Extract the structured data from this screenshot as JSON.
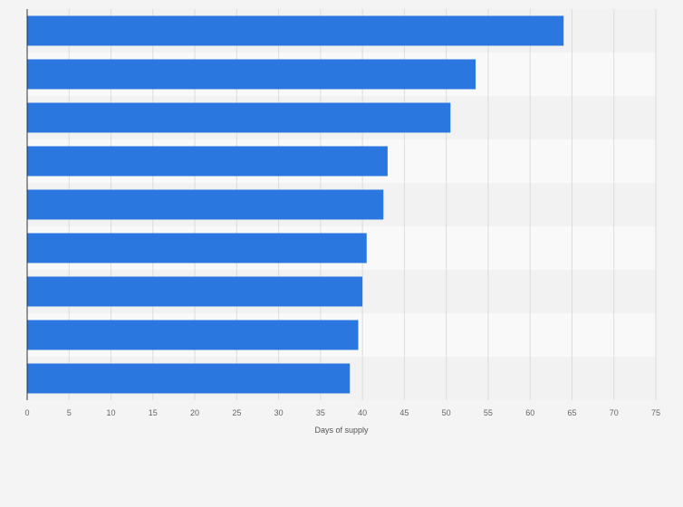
{
  "chart_data": {
    "type": "bar",
    "orientation": "horizontal",
    "title": "",
    "xlabel": "Days of supply",
    "ylabel": "",
    "xlim": [
      0,
      75
    ],
    "x_ticks": [
      0,
      5,
      10,
      15,
      20,
      25,
      30,
      35,
      40,
      45,
      50,
      55,
      60,
      65,
      70,
      75
    ],
    "categories": [
      "",
      "",
      "",
      "",
      "",
      "",
      "",
      "",
      ""
    ],
    "values": [
      64,
      53.5,
      50.5,
      43,
      42.5,
      40.5,
      40,
      39.5,
      38.5
    ],
    "grid": true,
    "legend": "none",
    "colors": {
      "bar": "#2a77e0",
      "band_dark": "#f2f2f2",
      "band_light": "#f9f9f9",
      "grid": "#dcdcdc",
      "axis": "#333333"
    }
  }
}
